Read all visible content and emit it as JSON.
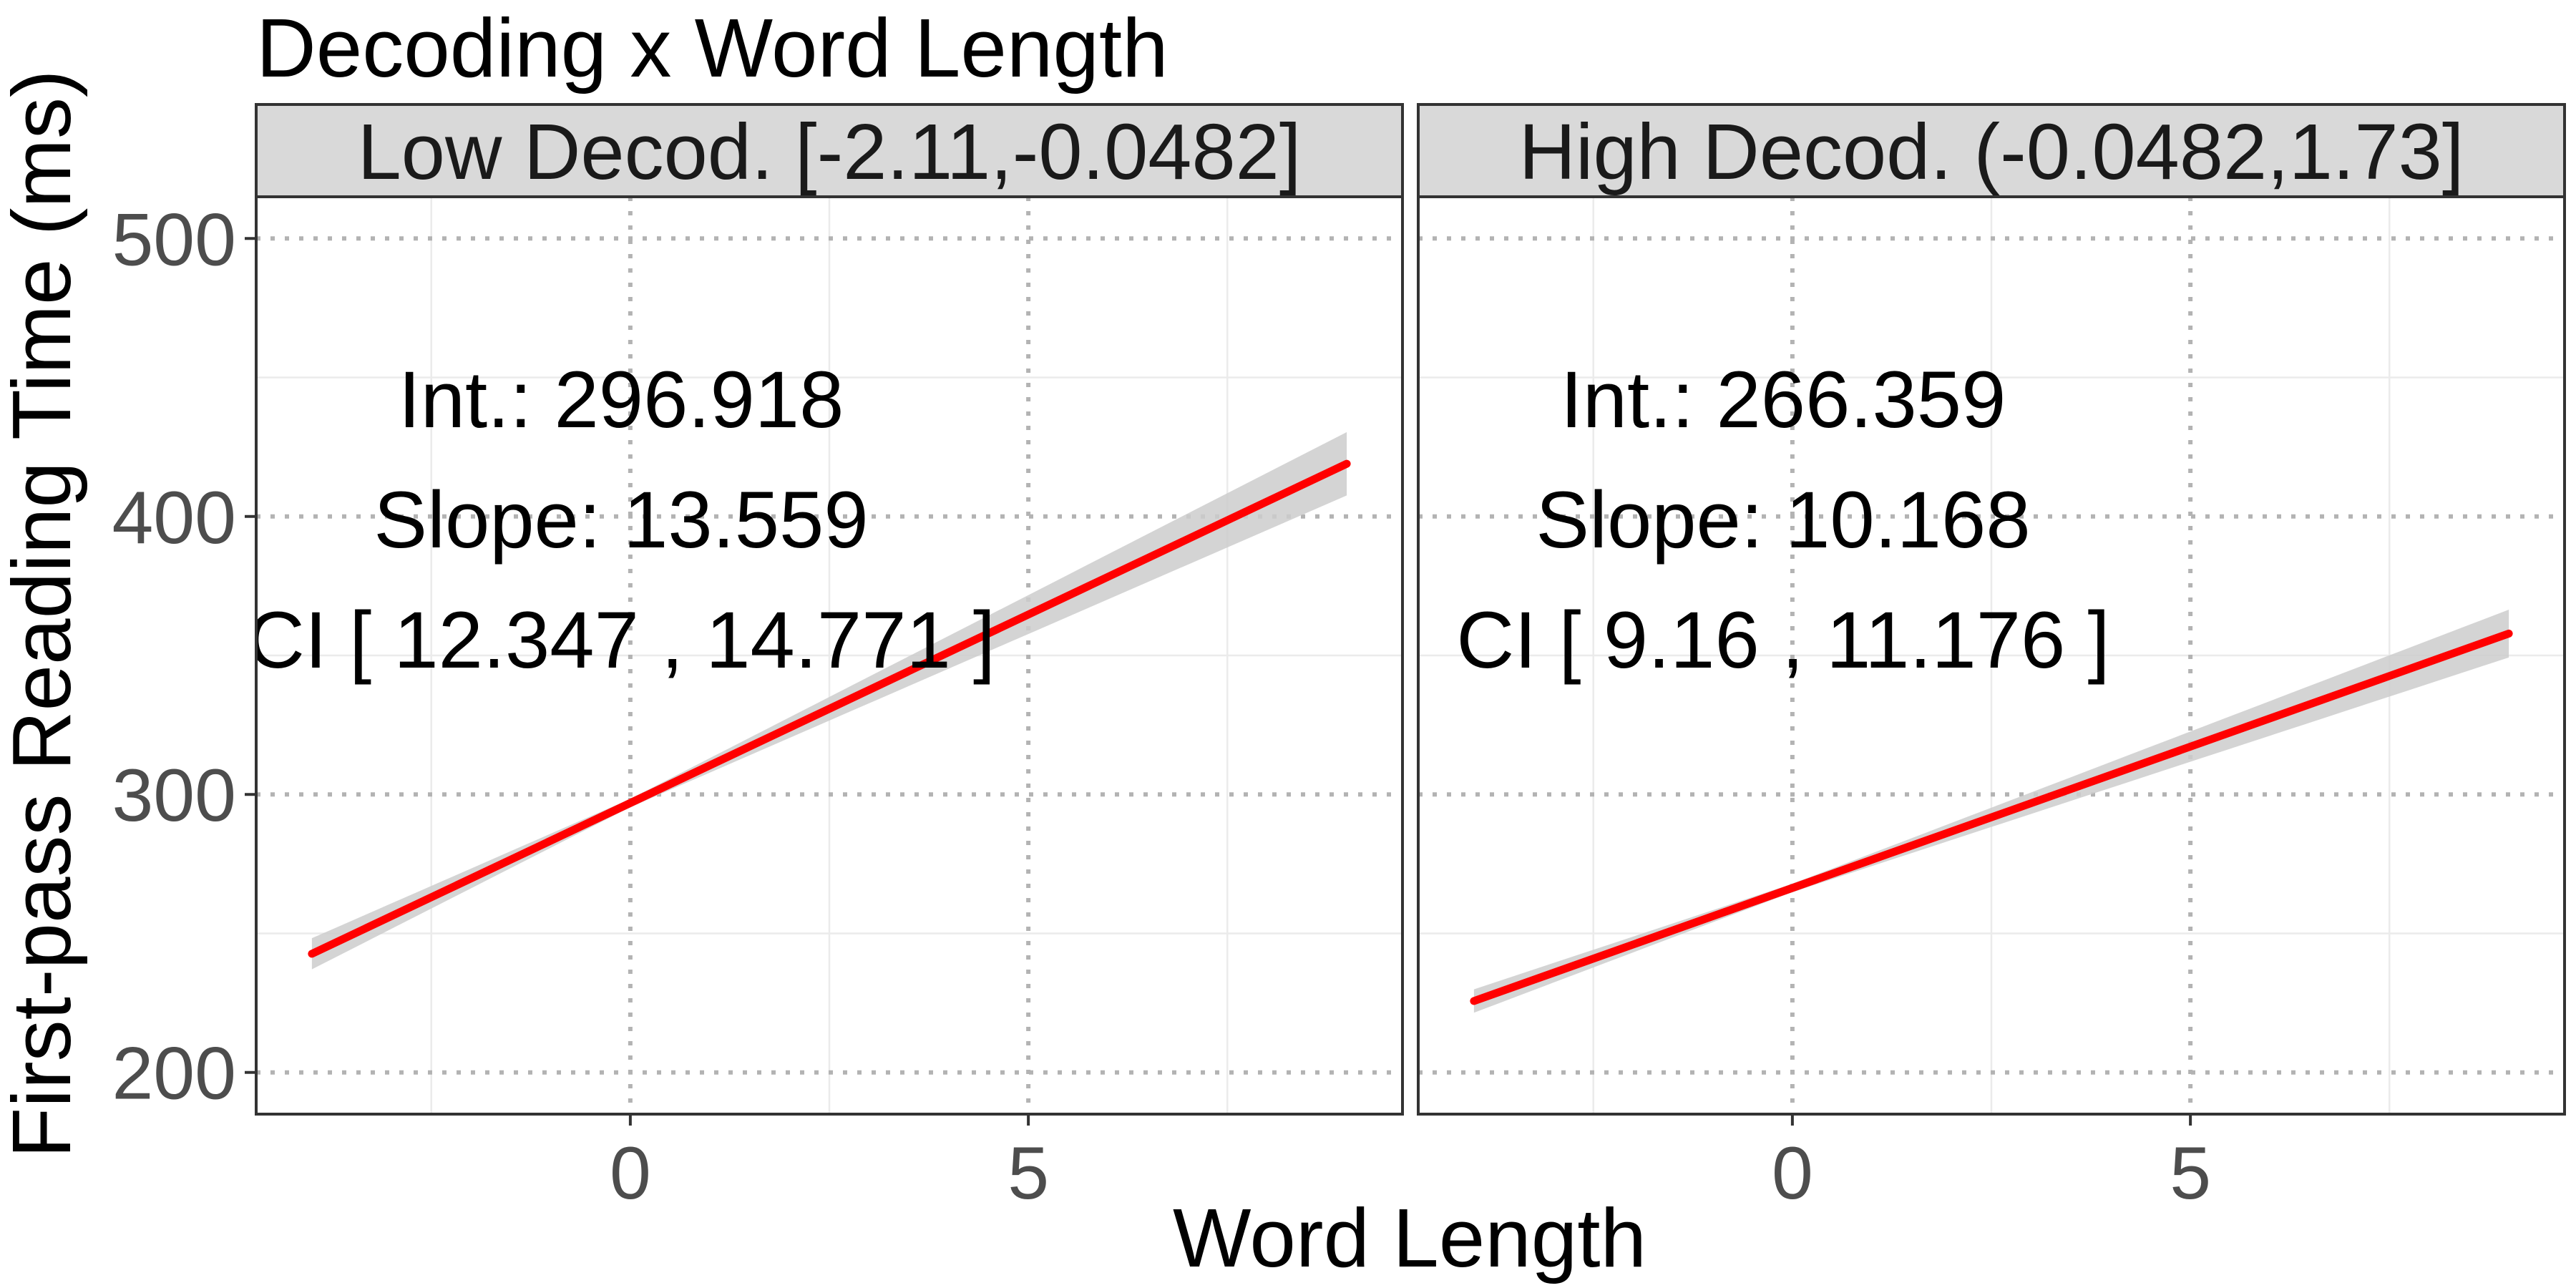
{
  "chart_data": {
    "type": "line",
    "title": "Decoding x Word Length",
    "xlabel": "Word Length",
    "ylabel": "First-pass Reading Time (ms)",
    "xlim": [
      -4.7,
      9.7
    ],
    "ylim": [
      185,
      515
    ],
    "x_ticks": [
      0,
      5
    ],
    "y_ticks": [
      200,
      300,
      400,
      500
    ],
    "grid": true,
    "line_color": "#ff0000",
    "ribbon_color": "#cccccc",
    "panels": [
      {
        "strip_label": "Low Decod. [-2.11,-0.0482]",
        "x_range": [
          -4.0,
          9.0
        ],
        "intercept": 296.918,
        "slope": 13.559,
        "ribbon_halfwidth_start": 5.6,
        "ribbon_halfwidth_end": 11.4,
        "annotation": {
          "line1": "Int.: 296.918",
          "line2": "Slope: 13.559",
          "line3": "CI [ 12.347 , 14.771 ]"
        }
      },
      {
        "strip_label": "High Decod. (-0.0482,1.73]",
        "x_range": [
          -4.0,
          9.0
        ],
        "intercept": 266.359,
        "slope": 10.168,
        "ribbon_halfwidth_start": 4.2,
        "ribbon_halfwidth_end": 8.6,
        "annotation": {
          "line1": "Int.: 266.359",
          "line2": "Slope: 10.168",
          "line3": "CI [ 9.16 , 11.176 ]"
        }
      }
    ]
  }
}
